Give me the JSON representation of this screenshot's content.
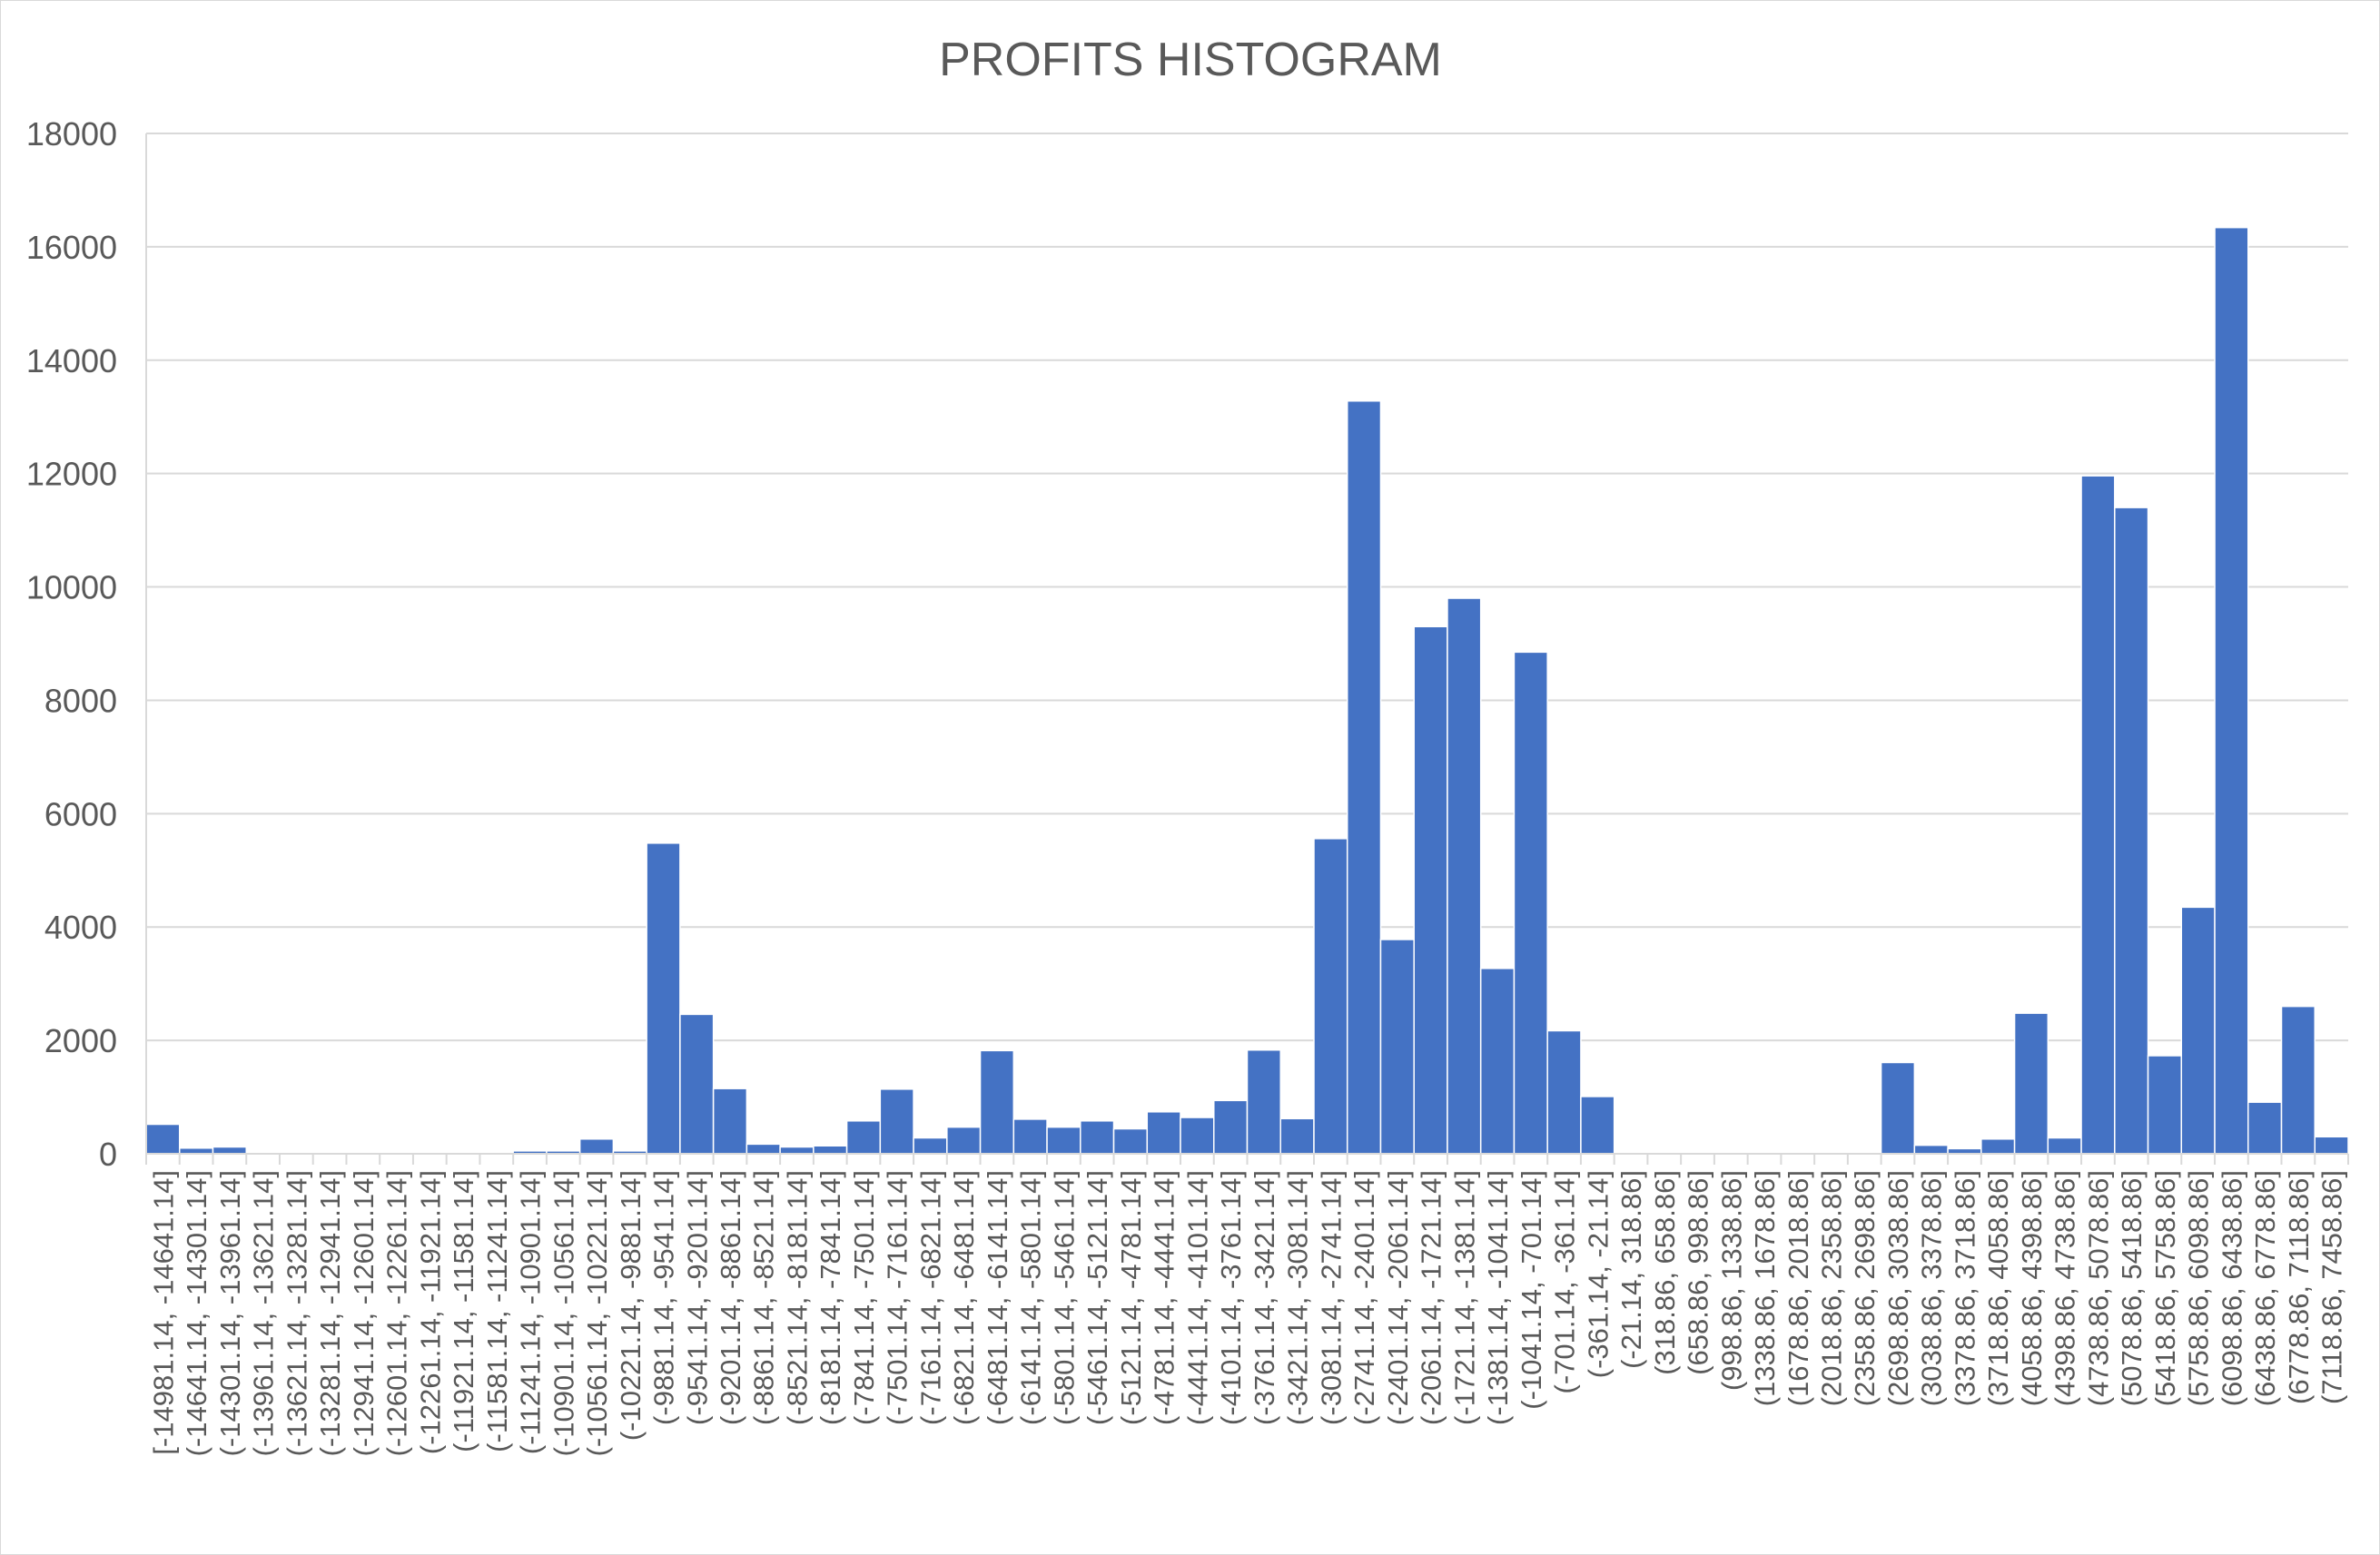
{
  "chart_data": {
    "type": "bar",
    "title": "PROFITS HISTOGRAM",
    "xlabel": "",
    "ylabel": "",
    "ylim": [
      0,
      18000
    ],
    "yticks": [
      0,
      2000,
      4000,
      6000,
      8000,
      10000,
      12000,
      14000,
      16000,
      18000
    ],
    "grid": true,
    "legend": "none",
    "bar_color": "#4472C4",
    "categories": [
      "[-14981.14, -14641.14]",
      "(-14641.14, -14301.14]",
      "(-14301.14, -13961.14]",
      "(-13961.14, -13621.14]",
      "(-13621.14, -13281.14]",
      "(-13281.14, -12941.14]",
      "(-12941.14, -12601.14]",
      "(-12601.14, -12261.14]",
      "(-12261.14, -11921.14]",
      "(-11921.14, -11581.14]",
      "(-11581.14, -11241.14]",
      "(-11241.14, -10901.14]",
      "(-10901.14, -10561.14]",
      "(-10561.14, -10221.14]",
      "(-10221.14, -9881.14]",
      "(-9881.14, -9541.14]",
      "(-9541.14, -9201.14]",
      "(-9201.14, -8861.14]",
      "(-8861.14, -8521.14]",
      "(-8521.14, -8181.14]",
      "(-8181.14, -7841.14]",
      "(-7841.14, -7501.14]",
      "(-7501.14, -7161.14]",
      "(-7161.14, -6821.14]",
      "(-6821.14, -6481.14]",
      "(-6481.14, -6141.14]",
      "(-6141.14, -5801.14]",
      "(-5801.14, -5461.14]",
      "(-5461.14, -5121.14]",
      "(-5121.14, -4781.14]",
      "(-4781.14, -4441.14]",
      "(-4441.14, -4101.14]",
      "(-4101.14, -3761.14]",
      "(-3761.14, -3421.14]",
      "(-3421.14, -3081.14]",
      "(-3081.14, -2741.14]",
      "(-2741.14, -2401.14]",
      "(-2401.14, -2061.14]",
      "(-2061.14, -1721.14]",
      "(-1721.14, -1381.14]",
      "(-1381.14, -1041.14]",
      "(-1041.14, -701.14]",
      "(-701.14, -361.14]",
      "(-361.14, -21.14]",
      "(-21.14, 318.86]",
      "(318.86, 658.86]",
      "(658.86, 998.86]",
      "(998.86, 1338.86]",
      "(1338.86, 1678.86]",
      "(1678.86, 2018.86]",
      "(2018.86, 2358.86]",
      "(2358.86, 2698.86]",
      "(2698.86, 3038.86]",
      "(3038.86, 3378.86]",
      "(3378.86, 3718.86]",
      "(3718.86, 4058.86]",
      "(4058.86, 4398.86]",
      "(4398.86, 4738.86]",
      "(4738.86, 5078.86]",
      "(5078.86, 5418.86]",
      "(5418.86, 5758.86]",
      "(5758.86, 6098.86]",
      "(6098.86, 6438.86]",
      "(6438.86, 6778.86]",
      "(6778.86, 7118.86]",
      "(7118.86, 7458.86]"
    ],
    "values": [
      520,
      100,
      120,
      10,
      5,
      5,
      5,
      5,
      5,
      5,
      10,
      50,
      50,
      260,
      50,
      5480,
      2460,
      1150,
      170,
      120,
      140,
      580,
      1140,
      280,
      470,
      1820,
      610,
      470,
      580,
      440,
      740,
      640,
      940,
      1830,
      620,
      5560,
      13280,
      3780,
      9300,
      9800,
      3270,
      8850,
      2170,
      1010,
      0,
      0,
      0,
      0,
      0,
      0,
      0,
      0,
      1610,
      150,
      90,
      260,
      2480,
      280,
      11960,
      11400,
      1730,
      4350,
      16340,
      910,
      2600,
      300
    ]
  }
}
